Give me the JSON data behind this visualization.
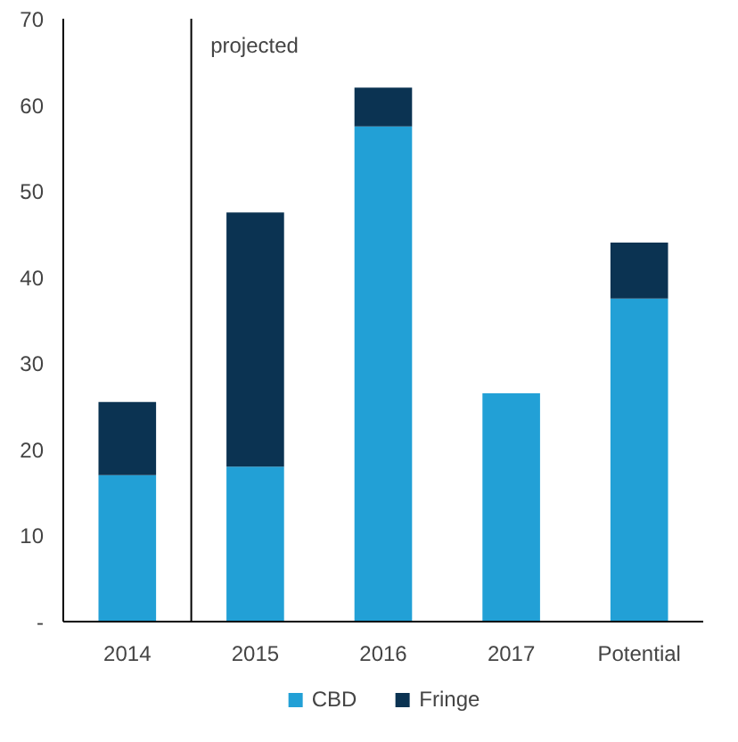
{
  "chart_data": {
    "type": "bar",
    "stacked": true,
    "categories": [
      "2014",
      "2015",
      "2016",
      "2017",
      "Potential"
    ],
    "series": [
      {
        "name": "CBD",
        "color": "#22a0d6",
        "values": [
          17,
          18,
          57.5,
          26.5,
          37.5
        ]
      },
      {
        "name": "Fringe",
        "color": "#0b3352",
        "values": [
          8.5,
          29.5,
          4.5,
          0,
          6.5
        ]
      }
    ],
    "ylim": [
      0,
      70
    ],
    "yticks": [
      {
        "value": 0,
        "label": "-"
      },
      10,
      20,
      30,
      40,
      50,
      60,
      70
    ],
    "annotations": [
      "projected"
    ],
    "grid": false,
    "legend": "bottom"
  }
}
